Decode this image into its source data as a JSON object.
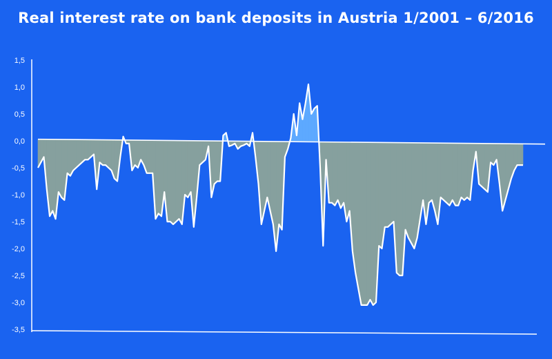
{
  "chart_data": {
    "type": "area",
    "title": "Real interest rate on bank deposits in Austria 1/2001 – 6/2016",
    "xlabel": "",
    "ylabel": "",
    "ylim": [
      -3.5,
      1.5
    ],
    "ytick_labels": [
      "1,5",
      "1,0",
      "0,5",
      "0,0",
      "-0,5",
      "-1,0",
      "-1,5",
      "-2,0",
      "-2,5",
      "-3,0",
      "-3,5"
    ],
    "ytick_values": [
      1.5,
      1.0,
      0.5,
      0.0,
      -0.5,
      -1.0,
      -1.5,
      -2.0,
      -2.5,
      -3.0,
      -3.5
    ],
    "x_start": "2001-01",
    "x_end": "2016-06",
    "grid": false,
    "colors": {
      "background": "#1a63f0",
      "negative_fill": "#86a09e",
      "positive_fill": "#5da9ff",
      "line": "#ffffff"
    },
    "series": [
      {
        "values": [
          -0.5,
          -0.4,
          -0.3,
          -0.9,
          -1.4,
          -1.3,
          -1.45,
          -0.95,
          -1.05,
          -1.1,
          -0.6,
          -0.65,
          -0.55,
          -0.5,
          -0.45,
          -0.4,
          -0.35,
          -0.35,
          -0.3,
          -0.25,
          -0.9,
          -0.4,
          -0.45,
          -0.45,
          -0.5,
          -0.55,
          -0.7,
          -0.75,
          -0.3,
          0.08,
          -0.05,
          -0.05,
          -0.55,
          -0.45,
          -0.5,
          -0.35,
          -0.45,
          -0.6,
          -0.6,
          -0.6,
          -1.45,
          -1.35,
          -1.4,
          -0.95,
          -1.5,
          -1.5,
          -1.55,
          -1.5,
          -1.45,
          -1.55,
          -1.0,
          -1.05,
          -0.95,
          -1.6,
          -1.05,
          -0.45,
          -0.4,
          -0.35,
          -0.1,
          -1.05,
          -0.8,
          -0.75,
          -0.75,
          0.1,
          0.15,
          -0.1,
          -0.08,
          -0.05,
          -0.15,
          -0.1,
          -0.08,
          -0.05,
          -0.1,
          0.15,
          -0.3,
          -0.8,
          -1.55,
          -1.3,
          -1.05,
          -1.3,
          -1.55,
          -2.05,
          -1.55,
          -1.65,
          -0.3,
          -0.15,
          0.05,
          0.5,
          0.1,
          0.7,
          0.4,
          0.7,
          1.05,
          0.5,
          0.6,
          0.65,
          -0.5,
          -1.95,
          -0.35,
          -1.15,
          -1.15,
          -1.2,
          -1.1,
          -1.25,
          -1.15,
          -1.5,
          -1.3,
          -2.05,
          -2.45,
          -2.75,
          -3.05,
          -3.05,
          -3.05,
          -2.95,
          -3.05,
          -3.0,
          -1.95,
          -2.0,
          -1.6,
          -1.6,
          -1.55,
          -1.5,
          -2.45,
          -2.5,
          -2.5,
          -1.65,
          -1.8,
          -1.9,
          -2.0,
          -1.8,
          -1.45,
          -1.1,
          -1.55,
          -1.15,
          -1.1,
          -1.3,
          -1.55,
          -1.05,
          -1.1,
          -1.15,
          -1.2,
          -1.1,
          -1.2,
          -1.2,
          -1.05,
          -1.1,
          -1.05,
          -1.1,
          -0.55,
          -0.2,
          -0.8,
          -0.85,
          -0.9,
          -0.95,
          -0.4,
          -0.45,
          -0.35,
          -0.8,
          -1.3,
          -1.1,
          -0.9,
          -0.7,
          -0.55,
          -0.45,
          -0.45,
          -0.45
        ]
      },
      {
        "x_months": [
          0,
          185
        ],
        "values": [
          0.03,
          -0.06
        ]
      }
    ]
  }
}
